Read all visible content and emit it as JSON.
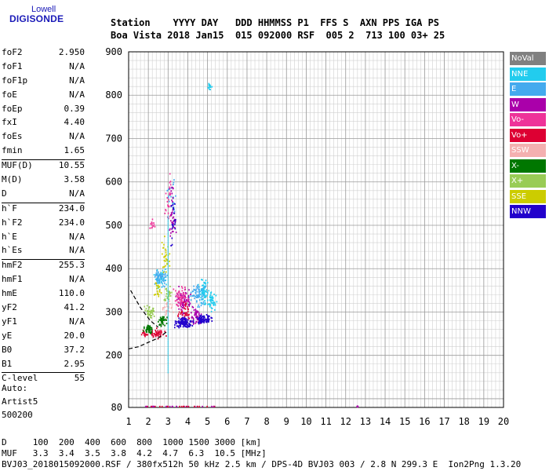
{
  "logo": {
    "line1": "Lowell",
    "line2": "DIGISONDE"
  },
  "header": {
    "line1": "Station    YYYY DAY   DDD HHMMSS P1  FFS S  AXN PPS IGA PS",
    "line2": "Boa Vista 2018 Jan15  015 092000 RSF  005 2  713 100 03+ 25"
  },
  "params": [
    {
      "label": "foF2",
      "value": "2.950"
    },
    {
      "label": "foF1",
      "value": "N/A"
    },
    {
      "label": "foF1p",
      "value": "N/A"
    },
    {
      "label": "foE",
      "value": "N/A"
    },
    {
      "label": "foEp",
      "value": "0.39"
    },
    {
      "label": "fxI",
      "value": "4.40"
    },
    {
      "label": "foEs",
      "value": "N/A"
    },
    {
      "label": "fmin",
      "value": "1.65"
    },
    {
      "label": "MUF(D)",
      "value": "10.55",
      "sep": true
    },
    {
      "label": "M(D)",
      "value": "3.58"
    },
    {
      "label": "D",
      "value": "N/A"
    },
    {
      "label": "h`F",
      "value": "234.0",
      "sep": true
    },
    {
      "label": "h`F2",
      "value": "234.0"
    },
    {
      "label": "h`E",
      "value": "N/A"
    },
    {
      "label": "h`Es",
      "value": "N/A"
    },
    {
      "label": "hmF2",
      "value": "255.3",
      "sep": true
    },
    {
      "label": "hmF1",
      "value": "N/A"
    },
    {
      "label": "hmE",
      "value": "110.0"
    },
    {
      "label": "yF2",
      "value": "41.2"
    },
    {
      "label": "yF1",
      "value": "N/A"
    },
    {
      "label": "yE",
      "value": "20.0"
    },
    {
      "label": "B0",
      "value": "37.2"
    },
    {
      "label": "B1",
      "value": "2.95"
    },
    {
      "label": "C-level",
      "value": "55",
      "sep": true
    }
  ],
  "auto": {
    "line1": "Auto:",
    "line2": "Artist5",
    "line3": "500200"
  },
  "footer": {
    "line1": "D     100  200  400  600  800  1000 1500 3000 [km]",
    "line2": "MUF   3.3  3.4  3.5  3.8  4.2  4.7  6.3  10.5 [MHz]",
    "line3": "BVJ03_2018015092000.RSF / 380fx512h 50 kHz 2.5 km / DPS-4D BVJ03 003 / 2.8 N 299.3 E  Ion2Png 1.3.20"
  },
  "legend": [
    {
      "label": "NoVal",
      "color": "#808080"
    },
    {
      "label": "NNE",
      "color": "#22ccee"
    },
    {
      "label": "E",
      "color": "#44aaee"
    },
    {
      "label": "W",
      "color": "#aa00aa"
    },
    {
      "label": "Vo-",
      "color": "#ee3399"
    },
    {
      "label": "Vo+",
      "color": "#dd0033"
    },
    {
      "label": "SSW",
      "color": "#f4b0b0"
    },
    {
      "label": "X-",
      "color": "#007700"
    },
    {
      "label": "X+",
      "color": "#99cc55"
    },
    {
      "label": "SSE",
      "color": "#cccc00"
    },
    {
      "label": "NNW",
      "color": "#2200cc"
    }
  ],
  "chart_data": {
    "type": "scatter",
    "title": "",
    "xlabel": "",
    "ylabel": "",
    "xlim": [
      1,
      20
    ],
    "ylim": [
      80,
      900
    ],
    "xticks": [
      1,
      2,
      3,
      4,
      5,
      6,
      7,
      8,
      9,
      10,
      11,
      12,
      13,
      14,
      15,
      16,
      17,
      18,
      19,
      20
    ],
    "yticks": [
      80,
      200,
      300,
      400,
      500,
      600,
      700,
      800,
      900
    ],
    "grid": true,
    "series": [
      {
        "name": "NNE",
        "color": "#22ccee",
        "clusters": [
          [
            4.8,
            345,
            0.35,
            40,
            70
          ],
          [
            5.2,
            325,
            0.3,
            30,
            50
          ],
          [
            2.6,
            380,
            0.4,
            30,
            40
          ],
          [
            5.1,
            820,
            0.25,
            12,
            14
          ]
        ]
      },
      {
        "name": "E",
        "color": "#44aaee",
        "clusters": [
          [
            2.6,
            380,
            0.45,
            25,
            60
          ],
          [
            4.5,
            340,
            0.5,
            40,
            60
          ],
          [
            3.2,
            560,
            0.3,
            60,
            30
          ]
        ]
      },
      {
        "name": "W",
        "color": "#aa00aa",
        "clusters": [
          [
            3.8,
            320,
            0.5,
            45,
            90
          ],
          [
            3.2,
            520,
            0.25,
            90,
            40
          ],
          [
            4.4,
            290,
            0.4,
            30,
            50
          ]
        ]
      },
      {
        "name": "Vo-",
        "color": "#ee3399",
        "clusters": [
          [
            3.7,
            330,
            0.5,
            40,
            60
          ],
          [
            3.0,
            560,
            0.2,
            80,
            25
          ],
          [
            2.2,
            500,
            0.25,
            20,
            12
          ]
        ]
      },
      {
        "name": "Vo+",
        "color": "#dd0033",
        "clusters": [
          [
            2.5,
            250,
            0.5,
            15,
            50
          ],
          [
            3.8,
            300,
            0.4,
            30,
            40
          ],
          [
            1.8,
            250,
            0.2,
            12,
            15
          ]
        ]
      },
      {
        "name": "SSW",
        "color": "#f4b0b0",
        "clusters": [
          [
            3.0,
            310,
            0.4,
            30,
            30
          ]
        ]
      },
      {
        "name": "X-",
        "color": "#007700",
        "clusters": [
          [
            2.0,
            260,
            0.3,
            15,
            50
          ],
          [
            2.7,
            280,
            0.3,
            20,
            40
          ]
        ]
      },
      {
        "name": "X+",
        "color": "#99cc55",
        "clusters": [
          [
            2.1,
            300,
            0.35,
            20,
            40
          ],
          [
            3.0,
            340,
            0.3,
            25,
            30
          ]
        ]
      },
      {
        "name": "SSE",
        "color": "#cccc00",
        "clusters": [
          [
            2.9,
            430,
            0.3,
            60,
            35
          ],
          [
            2.5,
            350,
            0.3,
            30,
            20
          ]
        ]
      },
      {
        "name": "NNW",
        "color": "#2200cc",
        "clusters": [
          [
            3.8,
            275,
            0.6,
            15,
            140
          ],
          [
            4.8,
            285,
            0.5,
            15,
            80
          ],
          [
            3.3,
            500,
            0.2,
            90,
            20
          ]
        ]
      }
    ],
    "profile": [
      [
        1.0,
        215
      ],
      [
        1.5,
        220
      ],
      [
        2.0,
        230
      ],
      [
        2.5,
        240
      ],
      [
        2.95,
        255
      ]
    ],
    "profile_upper": [
      [
        1.1,
        350
      ],
      [
        1.6,
        310
      ],
      [
        2.1,
        280
      ],
      [
        2.5,
        265
      ]
    ]
  }
}
